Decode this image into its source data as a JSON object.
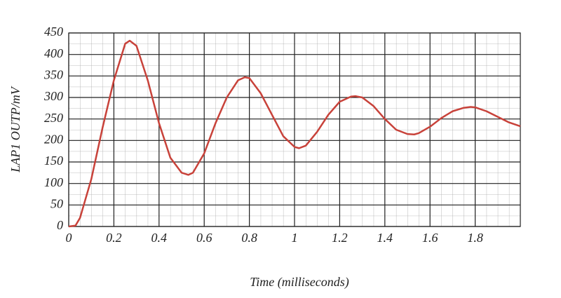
{
  "chart_data": {
    "type": "line",
    "xlabel": "Time (milliseconds)",
    "ylabel": "LAP1 OUTP/mV",
    "x": [
      0,
      0.03,
      0.05,
      0.1,
      0.15,
      0.2,
      0.25,
      0.27,
      0.3,
      0.35,
      0.4,
      0.45,
      0.5,
      0.53,
      0.55,
      0.6,
      0.65,
      0.7,
      0.75,
      0.78,
      0.8,
      0.85,
      0.9,
      0.95,
      1.0,
      1.02,
      1.05,
      1.1,
      1.15,
      1.2,
      1.25,
      1.27,
      1.3,
      1.35,
      1.4,
      1.45,
      1.5,
      1.53,
      1.55,
      1.6,
      1.65,
      1.7,
      1.75,
      1.78,
      1.8,
      1.85,
      1.9,
      1.95,
      2.0
    ],
    "series": [
      {
        "color": "#c8423a",
        "values": [
          0,
          2,
          20,
          110,
          230,
          340,
          425,
          432,
          420,
          340,
          240,
          160,
          125,
          120,
          125,
          170,
          240,
          300,
          340,
          347,
          345,
          310,
          260,
          210,
          185,
          182,
          188,
          220,
          260,
          290,
          302,
          303,
          300,
          280,
          250,
          225,
          215,
          214,
          217,
          232,
          252,
          268,
          276,
          278,
          277,
          268,
          255,
          242,
          233
        ]
      }
    ],
    "xlim": [
      0,
      2
    ],
    "xticks": [
      0,
      0.2,
      0.4,
      0.6,
      0.8,
      1,
      1.2,
      1.4,
      1.6,
      1.8
    ],
    "ylim": [
      0,
      450
    ],
    "yticks": [
      0,
      50,
      100,
      150,
      200,
      250,
      300,
      350,
      400,
      450
    ],
    "grid": true
  }
}
